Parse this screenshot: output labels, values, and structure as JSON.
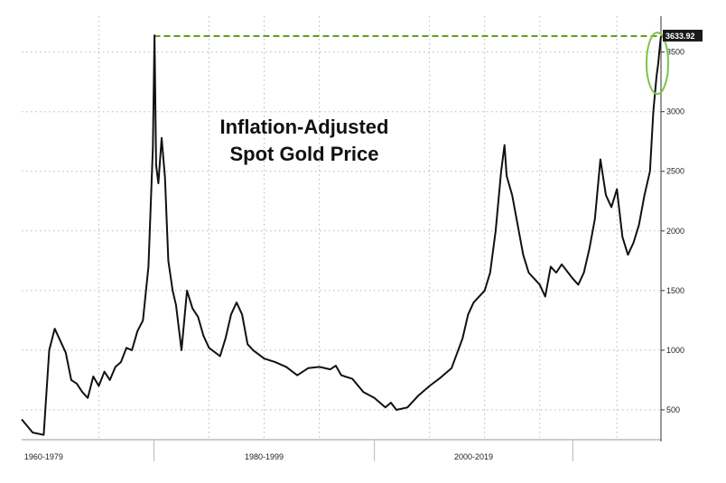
{
  "chart_data": {
    "type": "line",
    "title_lines": [
      "Inflation-Adjusted",
      "Spot Gold Price"
    ],
    "xlabel": "",
    "ylabel": "",
    "x_labels": [
      "1960-1979",
      "1980-1999",
      "2000-2019"
    ],
    "ylim": [
      250,
      3800
    ],
    "y_ticks": [
      500,
      1000,
      1500,
      2000,
      2500,
      3000,
      3500
    ],
    "grid": true,
    "reference_line": {
      "value": 3633.92,
      "label": "3633.92",
      "color": "#6b9a1a"
    },
    "highlight_circle_color": "#7fc24a",
    "line_color": "#111111",
    "series": [
      {
        "x": [
          1968.0,
          1969.0,
          1970.0,
          1970.5,
          1971.0,
          1971.5,
          1972.0,
          1972.5,
          1973.0,
          1973.5,
          1974.0,
          1974.5,
          1975.0,
          1975.5,
          1976.0,
          1976.5,
          1977.0,
          1977.5,
          1978.0,
          1978.5,
          1979.0,
          1979.5,
          1979.9,
          1980.05,
          1980.2,
          1980.4,
          1980.7,
          1981.0,
          1981.3,
          1981.7,
          1982.0,
          1982.5,
          1983.0,
          1983.5,
          1984.0,
          1984.5,
          1985.0,
          1986.0,
          1986.5,
          1987.0,
          1987.5,
          1988.0,
          1988.5,
          1989.0,
          1990.0,
          1991.0,
          1992.0,
          1993.0,
          1994.0,
          1995.0,
          1996.0,
          1996.5,
          1997.0,
          1998.0,
          1999.0,
          2000.0,
          2001.0,
          2001.5,
          2002.0,
          2003.0,
          2004.0,
          2005.0,
          2006.0,
          2007.0,
          2008.0,
          2008.5,
          2009.0,
          2010.0,
          2010.5,
          2011.0,
          2011.5,
          2011.8,
          2012.0,
          2012.5,
          2013.0,
          2013.5,
          2014.0,
          2015.0,
          2015.5,
          2016.0,
          2016.5,
          2017.0,
          2018.0,
          2018.5,
          2019.0,
          2019.5,
          2020.0,
          2020.5,
          2021.0,
          2021.5,
          2022.0,
          2022.5,
          2023.0,
          2023.5,
          2024.0,
          2024.5,
          2025.0,
          2025.3,
          2025.6,
          2025.75,
          2025.9,
          2026.0
        ],
        "y": [
          420,
          310,
          290,
          1000,
          1180,
          1080,
          980,
          750,
          720,
          650,
          600,
          780,
          700,
          820,
          750,
          860,
          900,
          1020,
          1000,
          1160,
          1250,
          1700,
          2700,
          3640,
          2550,
          2400,
          2780,
          2450,
          1750,
          1500,
          1380,
          1000,
          1500,
          1350,
          1280,
          1120,
          1020,
          950,
          1100,
          1300,
          1400,
          1300,
          1050,
          1000,
          930,
          900,
          860,
          790,
          850,
          860,
          840,
          870,
          790,
          760,
          650,
          600,
          520,
          560,
          500,
          520,
          620,
          700,
          770,
          850,
          1100,
          1300,
          1400,
          1500,
          1650,
          2000,
          2500,
          2720,
          2460,
          2300,
          2050,
          1800,
          1650,
          1550,
          1450,
          1700,
          1650,
          1720,
          1600,
          1550,
          1650,
          1850,
          2100,
          2600,
          2300,
          2200,
          2350,
          1950,
          1800,
          1900,
          2050,
          2300,
          2500,
          3000,
          3300,
          3400,
          3550,
          3633
        ]
      }
    ]
  }
}
